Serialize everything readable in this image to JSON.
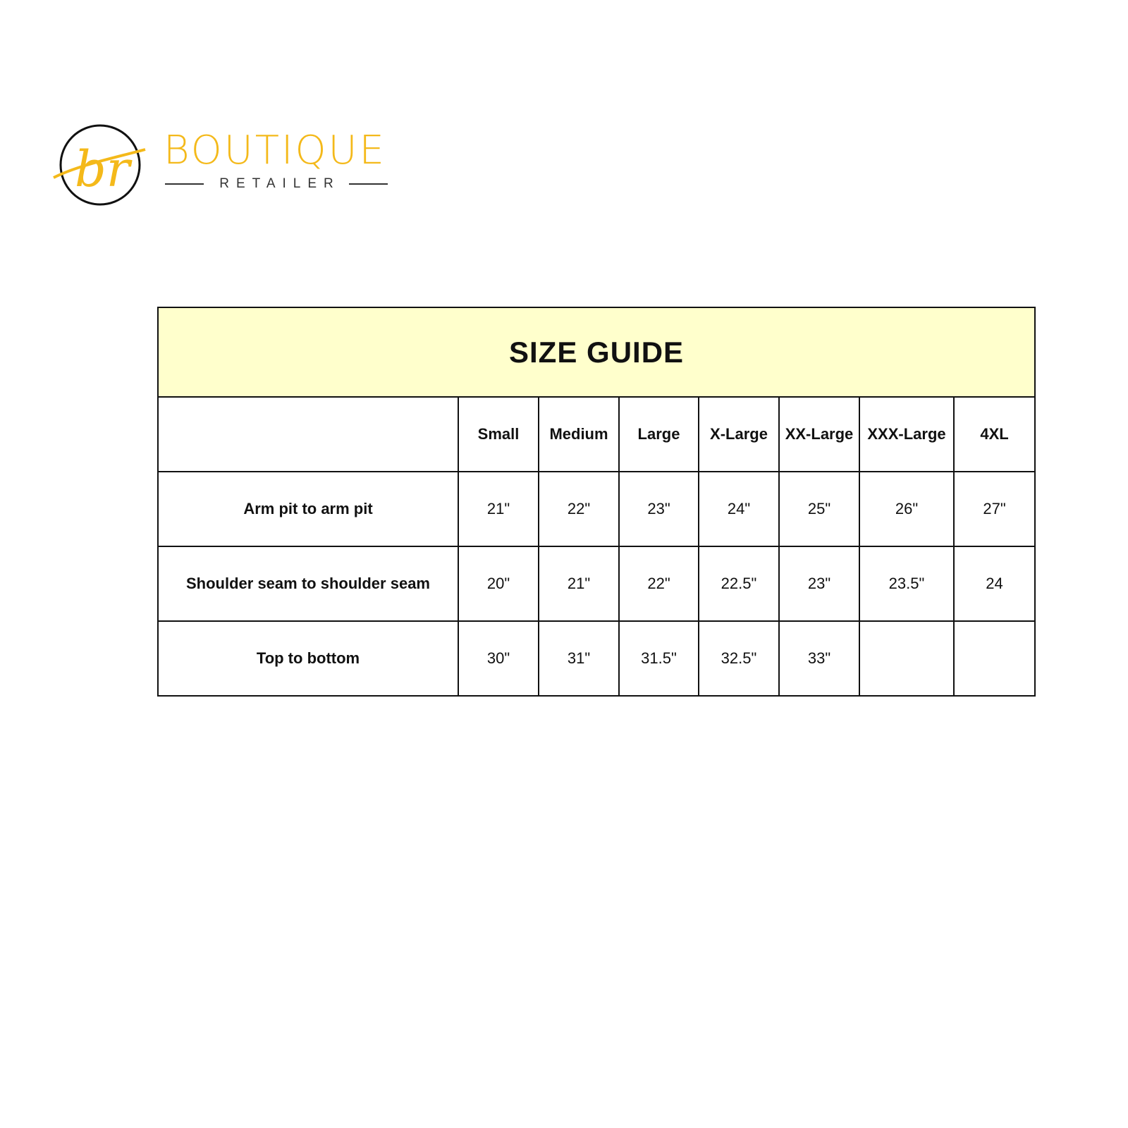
{
  "brand": {
    "name": "BOUTIQUE",
    "subtitle": "RETAILER",
    "monogram": "br",
    "accent": "#f4b91a"
  },
  "table": {
    "title": "SIZE GUIDE",
    "title_bg": "#ffffcc",
    "columns": [
      "",
      "Small",
      "Medium",
      "Large",
      "X-Large",
      "XX-Large",
      "XXX-Large",
      "4XL"
    ],
    "rows": [
      {
        "label": "Arm pit to arm pit",
        "values": [
          "21\"",
          "22\"",
          "23\"",
          "24\"",
          "25\"",
          "26\"",
          "27\""
        ]
      },
      {
        "label": "Shoulder seam to shoulder seam",
        "values": [
          "20\"",
          "21\"",
          "22\"",
          "22.5\"",
          "23\"",
          "23.5\"",
          "24"
        ]
      },
      {
        "label": "Top to bottom",
        "values": [
          "30\"",
          "31\"",
          "31.5\"",
          "32.5\"",
          "33\"",
          "",
          ""
        ]
      }
    ]
  }
}
